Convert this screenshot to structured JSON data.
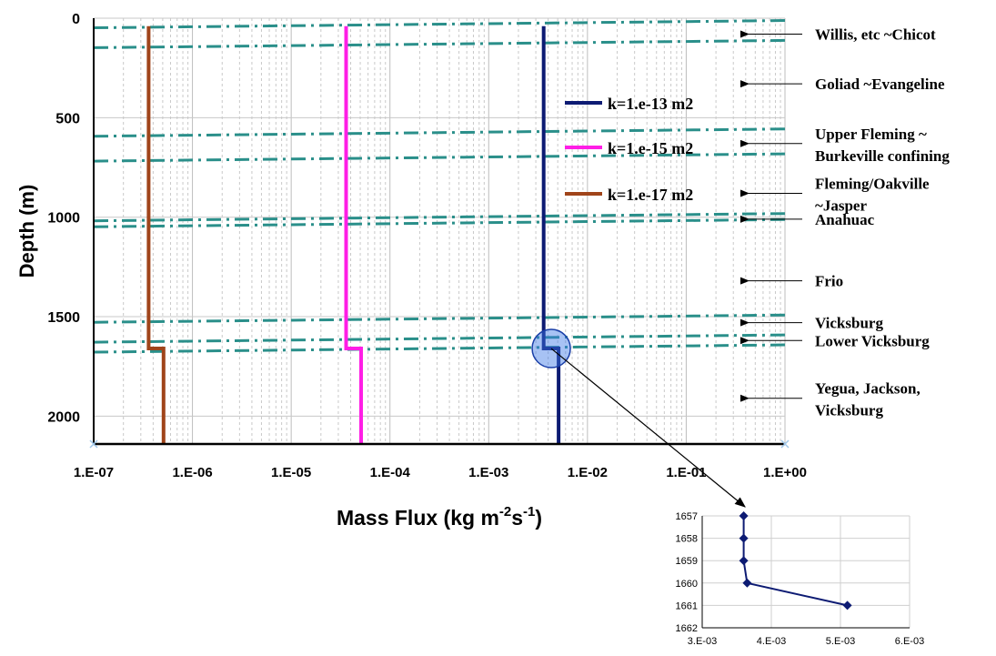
{
  "chart_data": [
    {
      "type": "line",
      "title": "",
      "xlabel": "Mass Flux (kg m^-2s^-1)",
      "xlabel_parts": {
        "base": "Mass Flux (kg m",
        "sup1": "-2",
        "mid": "s",
        "sup2": "-1",
        "end": ")"
      },
      "ylabel": "Depth (m)",
      "x_scale": "log",
      "xlim": [
        1e-07,
        1
      ],
      "ylim": [
        2140,
        0
      ],
      "y_inverted": true,
      "grid": true,
      "xticks": [
        {
          "value": 1e-07,
          "label": "1.E-07"
        },
        {
          "value": 1e-06,
          "label": "1.E-06"
        },
        {
          "value": 1e-05,
          "label": "1.E-05"
        },
        {
          "value": 0.0001,
          "label": "1.E-04"
        },
        {
          "value": 0.001,
          "label": "1.E-03"
        },
        {
          "value": 0.01,
          "label": "1.E-02"
        },
        {
          "value": 0.1,
          "label": "1.E-01"
        },
        {
          "value": 1,
          "label": "1.E+00"
        }
      ],
      "yticks": [
        {
          "value": 0,
          "label": "0"
        },
        {
          "value": 500,
          "label": "500"
        },
        {
          "value": 1000,
          "label": "1000"
        },
        {
          "value": 1500,
          "label": "1500"
        },
        {
          "value": 2000,
          "label": "2000"
        }
      ],
      "legend_position": "right-center",
      "series": [
        {
          "name": "k=1.e-13 m2",
          "color": "#0d1b73",
          "points": [
            [
              0.0036,
              40
            ],
            [
              0.0036,
              1660
            ],
            [
              0.0051,
              1660
            ],
            [
              0.0051,
              2140
            ]
          ]
        },
        {
          "name": "k=1.e-15 m2",
          "color": "#ff1ee6",
          "points": [
            [
              3.6e-05,
              40
            ],
            [
              3.6e-05,
              1660
            ],
            [
              5.1e-05,
              1660
            ],
            [
              5.1e-05,
              2140
            ]
          ]
        },
        {
          "name": "k=1.e-17 m2",
          "color": "#a0441a",
          "points": [
            [
              3.6e-07,
              40
            ],
            [
              3.6e-07,
              1660
            ],
            [
              5.1e-07,
              1660
            ],
            [
              5.1e-07,
              2140
            ]
          ]
        }
      ],
      "formation_boundaries": [
        {
          "depth": 30,
          "color": "#2a8f8a"
        },
        {
          "depth": 130,
          "color": "#2a8f8a"
        },
        {
          "depth": 575,
          "color": "#2a8f8a"
        },
        {
          "depth": 700,
          "color": "#2a8f8a"
        },
        {
          "depth": 1000,
          "color": "#2a8f8a"
        },
        {
          "depth": 1030,
          "color": "#2a8f8a"
        },
        {
          "depth": 1510,
          "color": "#2a8f8a"
        },
        {
          "depth": 1610,
          "color": "#2a8f8a"
        },
        {
          "depth": 1660,
          "color": "#2a8f8a"
        }
      ],
      "annotations": [
        {
          "lines": [
            "Willis, etc ~Chicot"
          ],
          "depth": 80
        },
        {
          "lines": [
            "Goliad ~Evangeline"
          ],
          "depth": 330
        },
        {
          "lines": [
            "Upper Fleming ~",
            "Burkeville confining"
          ],
          "depth": 630
        },
        {
          "lines": [
            "Fleming/Oakville",
            "~Jasper"
          ],
          "depth": 880
        },
        {
          "lines": [
            "Anahuac"
          ],
          "depth": 1010
        },
        {
          "lines": [
            "Frio"
          ],
          "depth": 1320
        },
        {
          "lines": [
            "Vicksburg"
          ],
          "depth": 1530
        },
        {
          "lines": [
            "Lower Vicksburg"
          ],
          "depth": 1620
        },
        {
          "lines": [
            "Yegua, Jackson,",
            "Vicksburg"
          ],
          "depth": 1910
        }
      ],
      "zoom_highlight": {
        "x": 0.0043,
        "depth": 1660
      }
    },
    {
      "type": "line",
      "title": "",
      "xlabel": "",
      "ylabel": "",
      "xlim": [
        0.003,
        0.006
      ],
      "ylim": [
        1662,
        1657
      ],
      "y_inverted": true,
      "grid": true,
      "xticks": [
        {
          "value": 0.003,
          "label": "3.E-03"
        },
        {
          "value": 0.004,
          "label": "4.E-03"
        },
        {
          "value": 0.005,
          "label": "5.E-03"
        },
        {
          "value": 0.006,
          "label": "6.E-03"
        }
      ],
      "yticks": [
        {
          "value": 1657,
          "label": "1657"
        },
        {
          "value": 1658,
          "label": "1658"
        },
        {
          "value": 1659,
          "label": "1659"
        },
        {
          "value": 1660,
          "label": "1660"
        },
        {
          "value": 1661,
          "label": "1661"
        },
        {
          "value": 1662,
          "label": "1662"
        }
      ],
      "series": [
        {
          "name": "",
          "color": "#0d1b73",
          "marker": "diamond",
          "points": [
            [
              0.0036,
              1657
            ],
            [
              0.0036,
              1658
            ],
            [
              0.0036,
              1659
            ],
            [
              0.00365,
              1660
            ],
            [
              0.0051,
              1661
            ]
          ]
        }
      ]
    }
  ]
}
